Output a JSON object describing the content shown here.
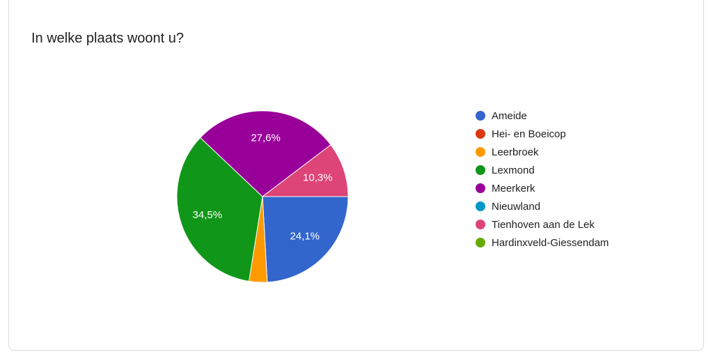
{
  "chart_data": {
    "type": "pie",
    "title": "In welke plaats woont u?",
    "categories": [
      "Ameide",
      "Hei- en Boeicop",
      "Leerbroek",
      "Lexmond",
      "Meerkerk",
      "Nieuwland",
      "Tienhoven aan de Lek",
      "Hardinxveld-Giessendam"
    ],
    "values": [
      24.1,
      0,
      3.4,
      34.5,
      27.6,
      0,
      10.3,
      0
    ],
    "value_labels": [
      "24,1%",
      null,
      null,
      "34,5%",
      "27,6%",
      null,
      "10,3%",
      null
    ],
    "colors": [
      "#3366cc",
      "#dc3912",
      "#ff9900",
      "#109618",
      "#990099",
      "#0099c6",
      "#dd4477",
      "#66aa00"
    ],
    "legend": "right"
  }
}
